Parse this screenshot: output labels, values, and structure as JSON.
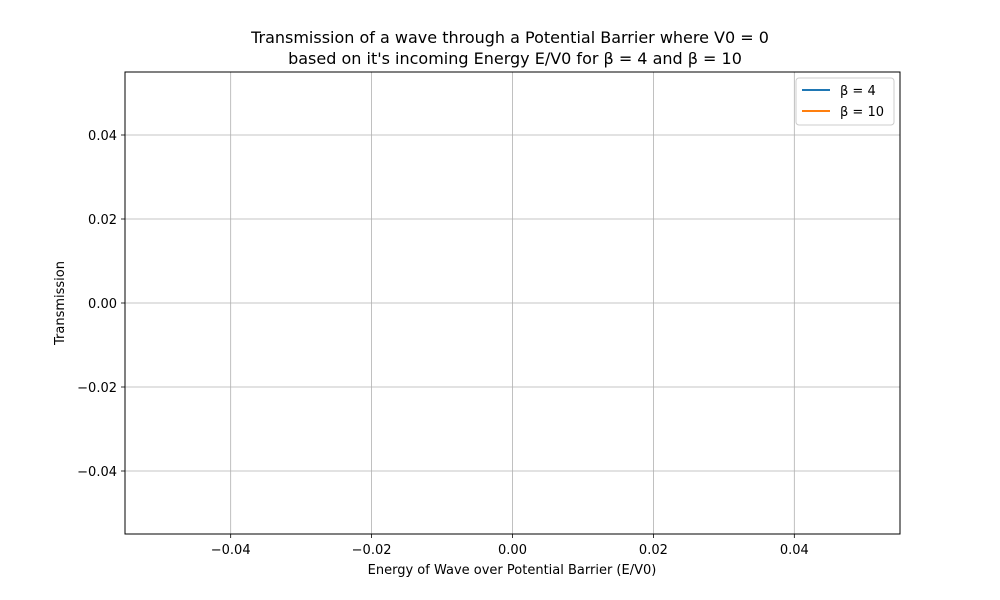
{
  "chart_data": {
    "type": "line",
    "title_line1": "Transmission of a wave through a Potential Barrier where V0 = 0",
    "title_line2": "based on it's incoming Energy E/V0 for β = 4 and β = 10",
    "xlabel": "Energy of Wave over Potential Barrier (E/V0)",
    "ylabel": "Transmission",
    "xlim": [
      -0.055,
      0.055
    ],
    "ylim": [
      -0.055,
      0.055
    ],
    "xticks": [
      -0.04,
      -0.02,
      0.0,
      0.02,
      0.04
    ],
    "yticks": [
      -0.04,
      -0.02,
      0.0,
      0.02,
      0.04
    ],
    "xtick_labels": [
      "−0.04",
      "−0.02",
      "0.00",
      "0.02",
      "0.04"
    ],
    "ytick_labels": [
      "−0.04",
      "−0.02",
      "0.00",
      "0.02",
      "0.04"
    ],
    "grid": true,
    "legend_position": "top-right",
    "series": [
      {
        "name": "β = 4",
        "color": "#1f77b4",
        "x": [],
        "y": []
      },
      {
        "name": "β = 10",
        "color": "#ff7f0e",
        "x": [],
        "y": []
      }
    ]
  }
}
